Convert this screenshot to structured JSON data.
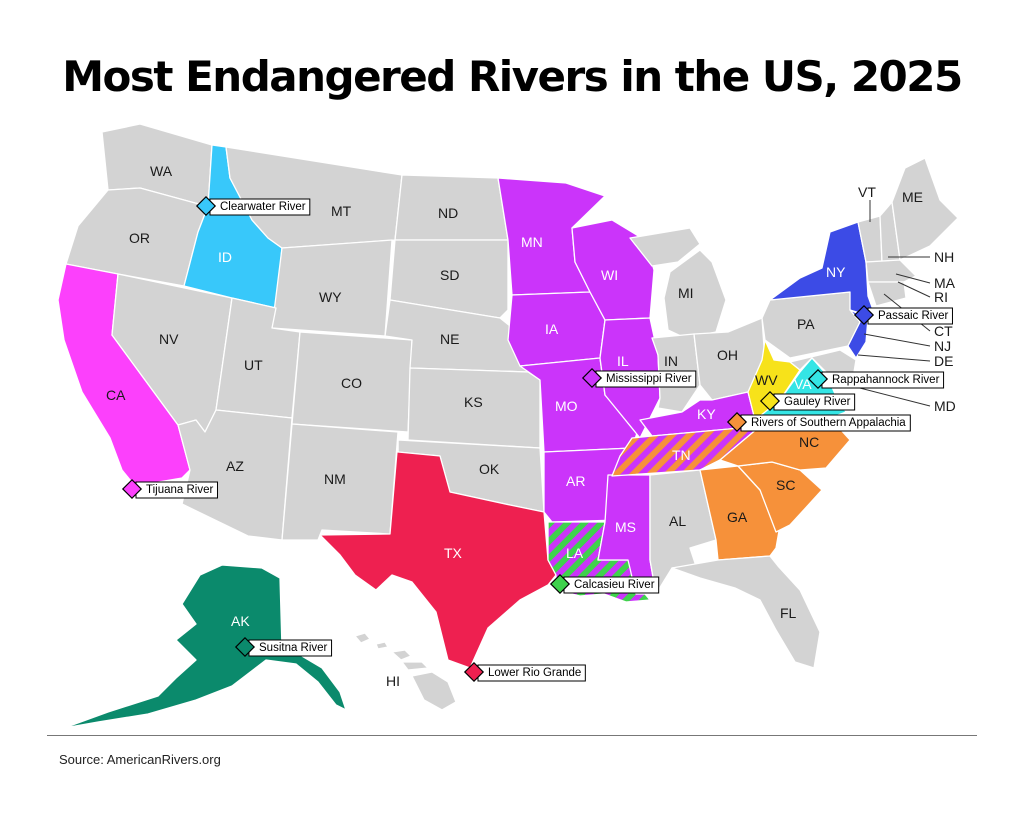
{
  "title": "Most Endangered Rivers in the US, 2025",
  "source": "Source: AmericanRivers.org",
  "colors": {
    "base": "#d3d3d3",
    "idaho": "#38c8fa",
    "midwest": "#cb34fa",
    "newyork": "#3c4be6",
    "newjersey": "#3c4be6",
    "westvirginia": "#f7e21a",
    "virginia": "#34e5e5",
    "southeast": "#f6913a",
    "texas": "#ee2050",
    "alaska": "#0b8a6c",
    "california": "#fc40fc",
    "louisiana_stripe": "#3fd24c",
    "tennessee_stripe": "#f6913a"
  },
  "states": [
    "WA",
    "OR",
    "CA",
    "NV",
    "ID",
    "MT",
    "WY",
    "UT",
    "AZ",
    "CO",
    "NM",
    "ND",
    "SD",
    "NE",
    "KS",
    "OK",
    "TX",
    "MN",
    "IA",
    "MO",
    "AR",
    "LA",
    "WI",
    "IL",
    "MS",
    "MI",
    "IN",
    "KY",
    "TN",
    "AL",
    "OH",
    "GA",
    "FL",
    "SC",
    "NC",
    "WV",
    "VA",
    "PA",
    "NY",
    "VT",
    "ME",
    "NH",
    "MA",
    "RI",
    "CT",
    "NJ",
    "DE",
    "MD",
    "AK",
    "HI"
  ],
  "rivers": [
    {
      "name": "Clearwater River",
      "color": "#38c8fa"
    },
    {
      "name": "Mississippi River",
      "color": "#cb34fa"
    },
    {
      "name": "Tijuana River",
      "color": "#fc40fc"
    },
    {
      "name": "Calcasieu River",
      "color": "#3fd24c"
    },
    {
      "name": "Susitna River",
      "color": "#0b8a6c"
    },
    {
      "name": "Lower Rio Grande",
      "color": "#ee2050"
    },
    {
      "name": "Passaic River",
      "color": "#3c4be6"
    },
    {
      "name": "Rappahannock River",
      "color": "#34e5e5"
    },
    {
      "name": "Gauley River",
      "color": "#f7e21a"
    },
    {
      "name": "Rivers of Southern Appalachia",
      "color": "#f6913a"
    }
  ]
}
